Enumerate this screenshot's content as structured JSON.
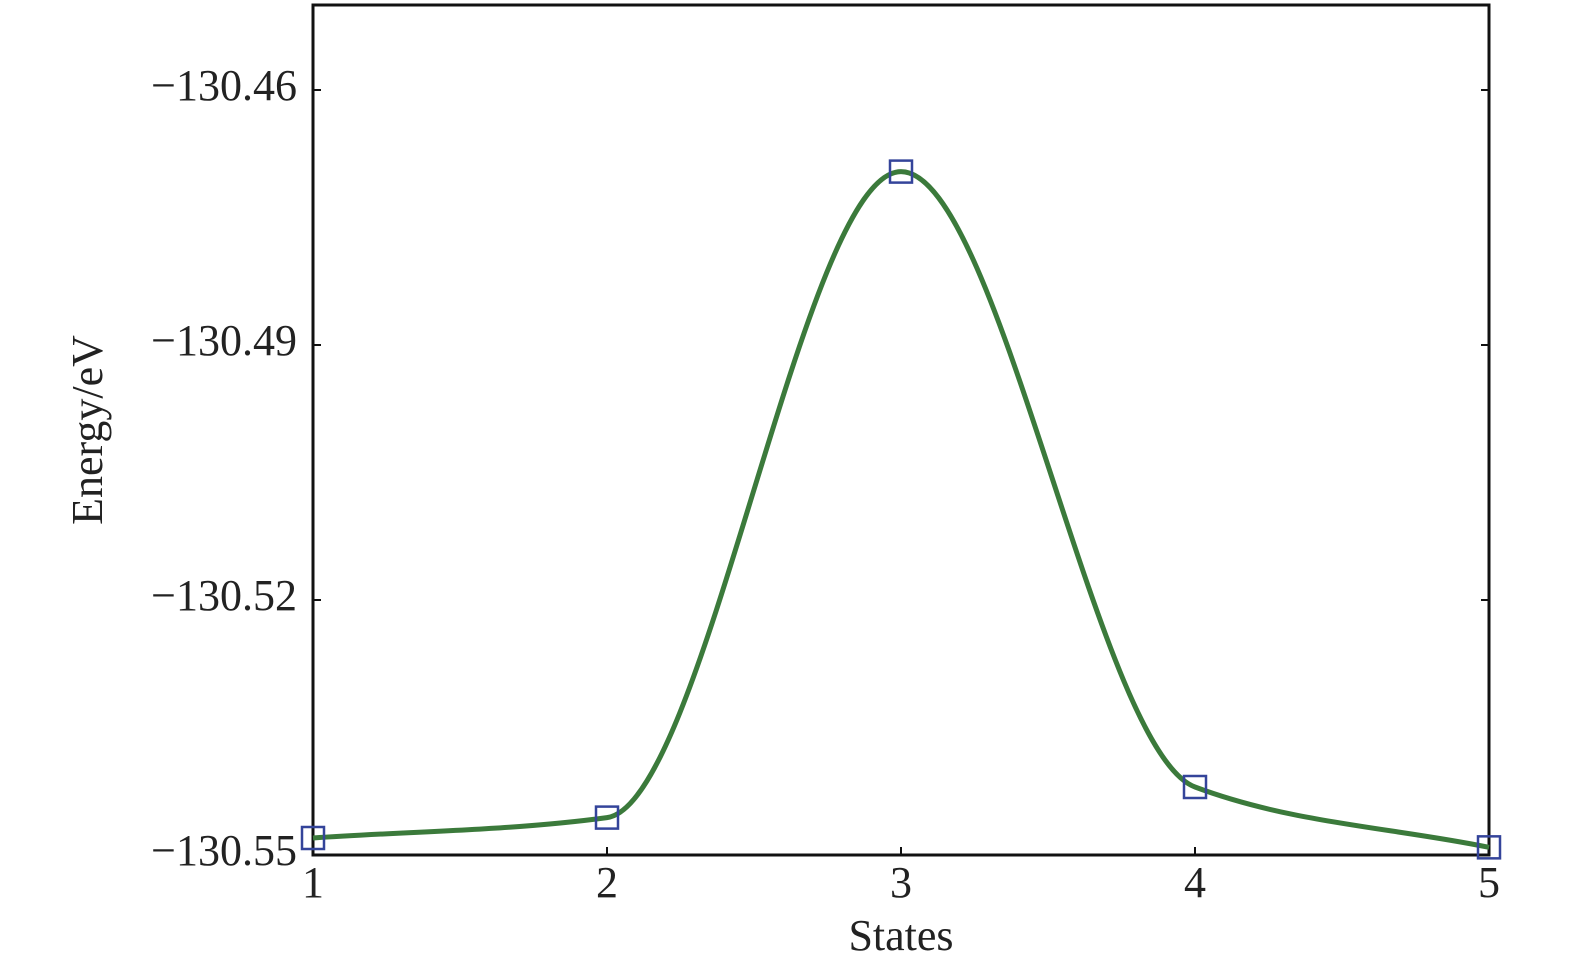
{
  "chart_data": {
    "type": "line",
    "x_label": "States",
    "y_label": "Energy/eV",
    "x": [
      1,
      2,
      3,
      4,
      5
    ],
    "series": [
      {
        "color": "#3b7a3b",
        "marker_color": "#34449a",
        "values": [
          -130.548,
          -130.5456,
          -130.4696,
          -130.542,
          -130.5491
        ]
      }
    ],
    "xlim": [
      1,
      5
    ],
    "xticks": [
      1,
      2,
      3,
      4,
      5
    ],
    "ylim": [
      -130.55,
      -130.45
    ],
    "yticks": [
      {
        "value": -130.55,
        "label": "−130.55"
      },
      {
        "value": -130.52,
        "label": "−130.52"
      },
      {
        "value": -130.49,
        "label": "−130.49"
      },
      {
        "value": -130.46,
        "label": "−130.46"
      }
    ],
    "grid": false
  }
}
